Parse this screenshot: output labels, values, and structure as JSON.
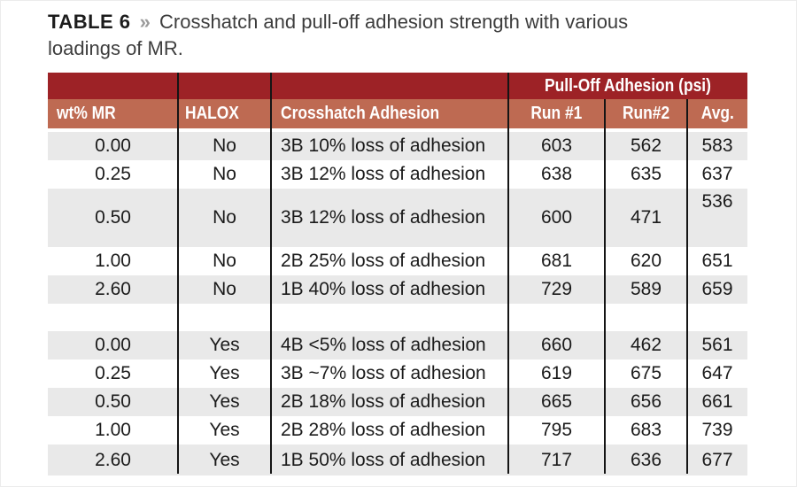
{
  "caption": {
    "label": "TABLE 6",
    "separator": "»",
    "text": "Crosshatch and pull-off adhesion strength with various loadings of MR."
  },
  "table": {
    "group_header": "Pull-Off Adhesion (psi)",
    "headers": {
      "wt": "wt% MR",
      "halox": "HALOX",
      "crosshatch": "Crosshatch Adhesion",
      "run1": "Run #1",
      "run2": "Run#2",
      "avg": "Avg."
    },
    "rows": [
      {
        "wt": "0.00",
        "halox": "No",
        "crosshatch": "3B 10% loss of adhesion",
        "run1": "603",
        "run2": "562",
        "avg": "583"
      },
      {
        "wt": "0.25",
        "halox": "No",
        "crosshatch": "3B 12% loss of adhesion",
        "run1": "638",
        "run2": "635",
        "avg": "637"
      },
      {
        "wt": "0.50",
        "halox": "No",
        "crosshatch": "3B 12% loss of adhesion",
        "run1": "600",
        "run2": "471",
        "avg": "536"
      },
      {
        "wt": "1.00",
        "halox": "No",
        "crosshatch": "2B 25% loss of adhesion",
        "run1": "681",
        "run2": "620",
        "avg": "651"
      },
      {
        "wt": "2.60",
        "halox": "No",
        "crosshatch": "1B 40% loss of adhesion",
        "run1": "729",
        "run2": "589",
        "avg": "659"
      },
      {
        "wt": "0.00",
        "halox": "Yes",
        "crosshatch": "4B <5% loss of adhesion",
        "run1": "660",
        "run2": "462",
        "avg": "561"
      },
      {
        "wt": "0.25",
        "halox": "Yes",
        "crosshatch": "3B ~7% loss of adhesion",
        "run1": "619",
        "run2": "675",
        "avg": "647"
      },
      {
        "wt": "0.50",
        "halox": "Yes",
        "crosshatch": "2B 18% loss of adhesion",
        "run1": "665",
        "run2": "656",
        "avg": "661"
      },
      {
        "wt": "1.00",
        "halox": "Yes",
        "crosshatch": "2B 28% loss of adhesion",
        "run1": "795",
        "run2": "683",
        "avg": "739"
      },
      {
        "wt": "2.60",
        "halox": "Yes",
        "crosshatch": "1B 50% loss of adhesion",
        "run1": "717",
        "run2": "636",
        "avg": "677"
      }
    ]
  },
  "chart_data": {
    "type": "table",
    "title": "TABLE 6 » Crosshatch and pull-off adhesion strength with various loadings of MR.",
    "column_groups": [
      {
        "label": "Pull-Off Adhesion (psi)",
        "spans": [
          "Run #1",
          "Run#2",
          "Avg."
        ]
      }
    ],
    "columns": [
      "wt% MR",
      "HALOX",
      "Crosshatch Adhesion",
      "Run #1",
      "Run#2",
      "Avg."
    ],
    "rows": [
      [
        "0.00",
        "No",
        "3B 10% loss of adhesion",
        603,
        562,
        583
      ],
      [
        "0.25",
        "No",
        "3B 12% loss of adhesion",
        638,
        635,
        637
      ],
      [
        "0.50",
        "No",
        "3B 12% loss of adhesion",
        600,
        471,
        536
      ],
      [
        "1.00",
        "No",
        "2B 25% loss of adhesion",
        681,
        620,
        651
      ],
      [
        "2.60",
        "No",
        "1B 40% loss of adhesion",
        729,
        589,
        659
      ],
      [
        "0.00",
        "Yes",
        "4B <5% loss of adhesion",
        660,
        462,
        561
      ],
      [
        "0.25",
        "Yes",
        "3B ~7% loss of adhesion",
        619,
        675,
        647
      ],
      [
        "0.50",
        "Yes",
        "2B 18% loss of adhesion",
        665,
        656,
        661
      ],
      [
        "1.00",
        "Yes",
        "2B 28% loss of adhesion",
        795,
        683,
        739
      ],
      [
        "2.60",
        "Yes",
        "1B 50% loss of adhesion",
        717,
        636,
        677
      ]
    ]
  },
  "colors": {
    "header_dark_red": "#9D2226",
    "header_salmon": "#BE6A52",
    "row_gray": "#E9E9E9",
    "rule_black": "#151515",
    "header_text": "#FFFFFF",
    "body_text": "#1B1B1B"
  }
}
